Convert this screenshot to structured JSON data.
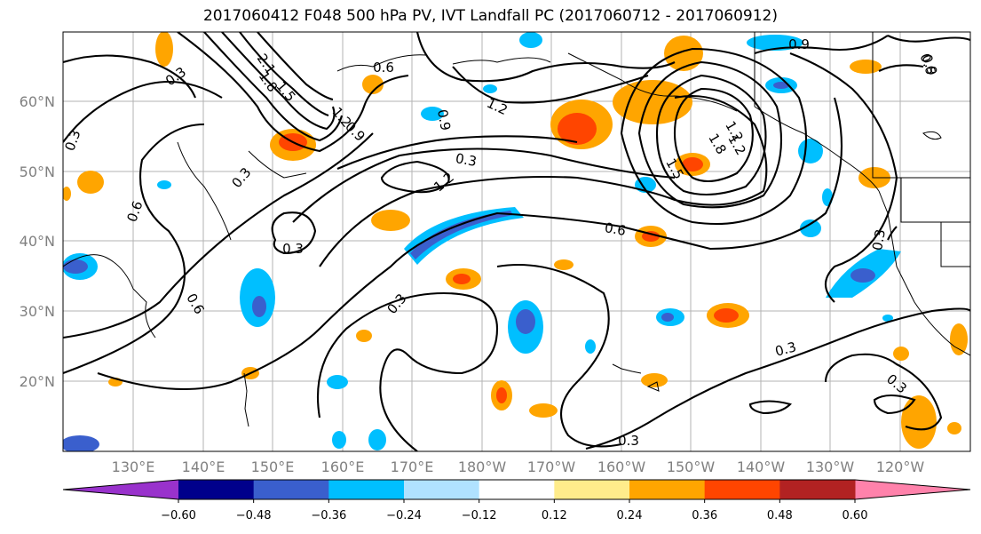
{
  "title": "2017060412 F048 500 hPa PV, IVT Landfall PC (2017060712 - 2017060912)",
  "lon_labels": [
    "130°E",
    "140°E",
    "150°E",
    "160°E",
    "170°E",
    "180°W",
    "170°W",
    "160°W",
    "150°W",
    "140°W",
    "130°W",
    "120°W"
  ],
  "lat_labels": [
    "60°N",
    "50°N",
    "40°N",
    "30°N",
    "20°N"
  ],
  "colorbar": {
    "ticks": [
      "-0.60",
      "-0.48",
      "-0.36",
      "-0.24",
      "-0.12",
      "0.12",
      "0.24",
      "0.36",
      "0.48",
      "0.60"
    ],
    "colors": [
      "#9932cc",
      "#00008b",
      "#3a5fcd",
      "#00bfff",
      "#b0e2ff",
      "#ffffff",
      "#ffec8b",
      "#ffa500",
      "#ff4500",
      "#b22222",
      "#ff82ab"
    ]
  },
  "contour_labels": [
    "0.3",
    "2.1",
    "1.8",
    "1.5",
    "1.2",
    "0.9",
    "0.6",
    "0.3",
    "0.9",
    "1.2",
    "0.3",
    "0.6",
    "0.3",
    "1.2",
    "0.3",
    "1.2",
    "1.8",
    "1.5",
    "0.9",
    "0.6",
    "0.3",
    "0.3",
    "0.3",
    "0.6",
    "0.6",
    "0.3",
    "0.3",
    "1.2",
    "0.9"
  ]
}
